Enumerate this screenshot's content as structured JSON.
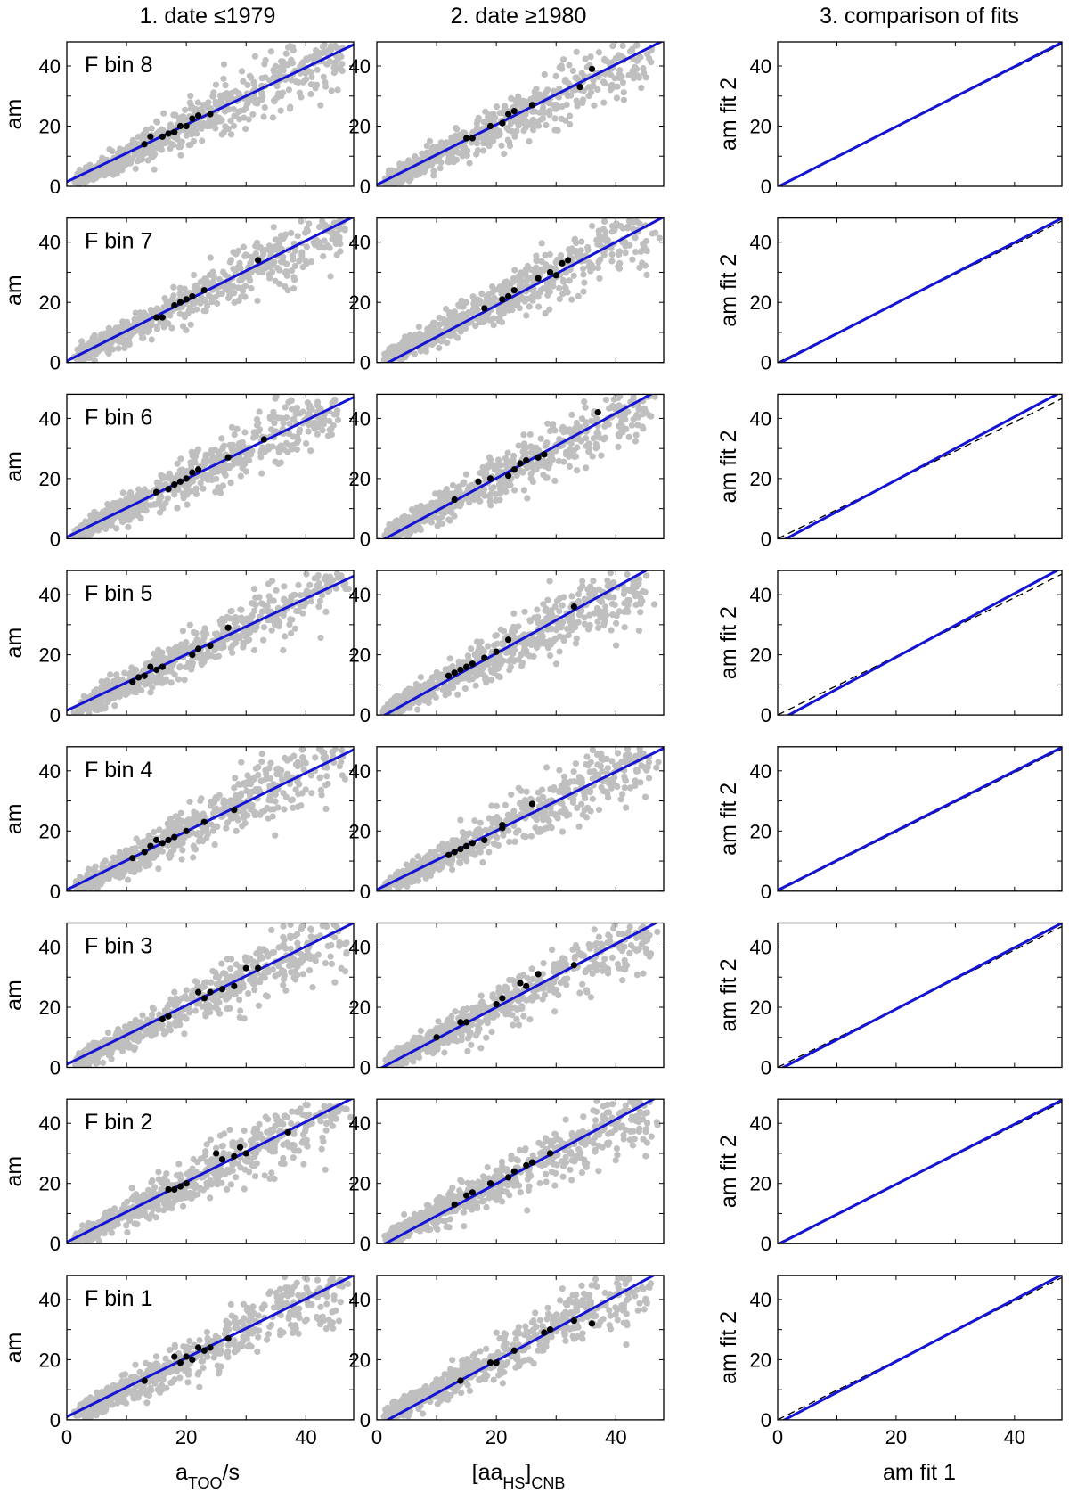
{
  "figure": {
    "col_titles": [
      "1. date ≤1979",
      "2. date ≥1980",
      "3. comparison of fits"
    ],
    "y_labels": [
      "am",
      "am",
      "am fit 2"
    ],
    "x_labels": [
      {
        "main": "a",
        "sub": "TOO",
        "rest": "/s"
      },
      {
        "pre": "[aa",
        "sub1": "HS",
        "mid": "]",
        "sub2": "CNB"
      },
      {
        "main": "am fit 1"
      }
    ],
    "tick_values": [
      0,
      20,
      40
    ]
  },
  "colors": {
    "scatter_gray": "#bfbfbf",
    "bin_mean_black": "#000000",
    "fit_blue": "#1414d2",
    "reference_dashed": "#000000"
  },
  "chart_data": [
    {
      "type": "scatter",
      "panel": "F bin 8, date ≤1979",
      "bin_label": "F bin 8",
      "xlim": [
        0,
        48
      ],
      "ylim": [
        0,
        48
      ],
      "grid": false,
      "series": [
        {
          "values": "gray scatter of 3-hourly data"
        }
      ],
      "bin_means": {
        "x": [
          13,
          14,
          16,
          17,
          18,
          19,
          20,
          21,
          22,
          24
        ],
        "y": [
          14,
          16.5,
          16.5,
          17.5,
          18,
          20,
          20,
          22.5,
          23.5,
          24
        ]
      },
      "fit_line": {
        "intercept": 1.5,
        "slope": 0.95
      }
    },
    {
      "type": "scatter",
      "panel": "F bin 8, date ≥1980",
      "xlim": [
        0,
        48
      ],
      "ylim": [
        0,
        48
      ],
      "grid": false,
      "bin_means": {
        "x": [
          15,
          16,
          19,
          21,
          22,
          23,
          26,
          34,
          36
        ],
        "y": [
          16,
          16,
          20,
          21,
          24,
          25,
          27,
          33,
          39
        ]
      },
      "fit_line": {
        "intercept": 0.5,
        "slope": 1.0
      }
    },
    {
      "type": "line",
      "panel": "F bin 8, comparison",
      "xlim": [
        0,
        48
      ],
      "ylim": [
        0,
        48
      ],
      "grid": false,
      "series": [
        {
          "name": "fit",
          "intercept": -0.2,
          "slope": 1.0
        },
        {
          "name": "y=x",
          "intercept": 0,
          "slope": 0.985
        }
      ]
    },
    {
      "type": "scatter",
      "panel": "F bin 7, date ≤1979",
      "bin_label": "F bin 7",
      "xlim": [
        0,
        48
      ],
      "ylim": [
        0,
        48
      ],
      "grid": false,
      "bin_means": {
        "x": [
          15,
          16,
          18,
          19,
          20,
          21,
          23,
          32
        ],
        "y": [
          15,
          15,
          19,
          20,
          21,
          22,
          24,
          34
        ]
      },
      "fit_line": {
        "intercept": 0.5,
        "slope": 1.0
      }
    },
    {
      "type": "scatter",
      "panel": "F bin 7, date ≥1980",
      "xlim": [
        0,
        48
      ],
      "ylim": [
        0,
        48
      ],
      "grid": false,
      "bin_means": {
        "x": [
          18,
          21,
          22,
          23,
          27,
          29,
          30,
          31,
          32
        ],
        "y": [
          18,
          21,
          22,
          24,
          28,
          30,
          29,
          33,
          34
        ]
      },
      "fit_line": {
        "intercept": -2,
        "slope": 1.05
      }
    },
    {
      "type": "line",
      "panel": "F bin 7, comparison",
      "xlim": [
        0,
        48
      ],
      "ylim": [
        0,
        48
      ],
      "grid": false,
      "series": [
        {
          "name": "fit",
          "intercept": -0.5,
          "slope": 1.01
        },
        {
          "name": "y=x",
          "intercept": 0,
          "slope": 0.98
        }
      ]
    },
    {
      "type": "scatter",
      "panel": "F bin 6, date ≤1979",
      "bin_label": "F bin 6",
      "xlim": [
        0,
        48
      ],
      "ylim": [
        0,
        48
      ],
      "grid": false,
      "bin_means": {
        "x": [
          15,
          17,
          18,
          19,
          20,
          21,
          22,
          27,
          33
        ],
        "y": [
          15.5,
          16.5,
          18,
          19,
          20,
          22,
          23,
          27,
          33
        ]
      },
      "fit_line": {
        "intercept": 0.5,
        "slope": 0.97
      }
    },
    {
      "type": "scatter",
      "panel": "F bin 6, date ≥1980",
      "xlim": [
        0,
        48
      ],
      "ylim": [
        0,
        48
      ],
      "grid": false,
      "bin_means": {
        "x": [
          13,
          17,
          19,
          22,
          23,
          24,
          25,
          27,
          28,
          37
        ],
        "y": [
          13,
          19,
          20,
          21,
          23,
          25,
          26,
          27,
          28,
          42
        ]
      },
      "fit_line": {
        "intercept": -1.5,
        "slope": 1.08
      }
    },
    {
      "type": "line",
      "panel": "F bin 6, comparison",
      "xlim": [
        0,
        48
      ],
      "ylim": [
        0,
        48
      ],
      "grid": false,
      "series": [
        {
          "name": "fit",
          "intercept": -1.5,
          "slope": 1.05
        },
        {
          "name": "y=x",
          "intercept": 0,
          "slope": 0.97
        }
      ]
    },
    {
      "type": "scatter",
      "panel": "F bin 5, date ≤1979",
      "bin_label": "F bin 5",
      "xlim": [
        0,
        48
      ],
      "ylim": [
        0,
        48
      ],
      "grid": false,
      "bin_means": {
        "x": [
          11,
          12,
          13,
          14,
          15,
          16,
          21,
          22,
          24,
          27
        ],
        "y": [
          11,
          12.5,
          13,
          16,
          15,
          16,
          20,
          22,
          23,
          29
        ]
      },
      "fit_line": {
        "intercept": 1.5,
        "slope": 0.93
      }
    },
    {
      "type": "scatter",
      "panel": "F bin 5, date ≥1980",
      "xlim": [
        0,
        48
      ],
      "ylim": [
        0,
        48
      ],
      "grid": false,
      "bin_means": {
        "x": [
          12,
          13,
          14,
          15,
          16,
          18,
          20,
          22,
          33
        ],
        "y": [
          13,
          14,
          15,
          16,
          17,
          19,
          21,
          25,
          36
        ]
      },
      "fit_line": {
        "intercept": -1.5,
        "slope": 1.1
      }
    },
    {
      "type": "line",
      "panel": "F bin 5, comparison",
      "xlim": [
        0,
        48
      ],
      "ylim": [
        0,
        48
      ],
      "grid": false,
      "series": [
        {
          "name": "fit",
          "intercept": -2,
          "slope": 1.06
        },
        {
          "name": "y=x",
          "intercept": 0,
          "slope": 0.975
        }
      ]
    },
    {
      "type": "scatter",
      "panel": "F bin 4, date ≤1979",
      "bin_label": "F bin 4",
      "xlim": [
        0,
        48
      ],
      "ylim": [
        0,
        48
      ],
      "grid": false,
      "bin_means": {
        "x": [
          11,
          13,
          14,
          15,
          16,
          17,
          18,
          20,
          23,
          28
        ],
        "y": [
          11,
          13,
          15,
          17,
          16,
          17,
          18,
          20,
          23,
          27
        ]
      },
      "fit_line": {
        "intercept": 0.5,
        "slope": 0.97
      }
    },
    {
      "type": "scatter",
      "panel": "F bin 4, date ≥1980",
      "xlim": [
        0,
        48
      ],
      "ylim": [
        0,
        48
      ],
      "grid": false,
      "bin_means": {
        "x": [
          12,
          13,
          14,
          15,
          16,
          18,
          21,
          21,
          26
        ],
        "y": [
          12,
          13,
          14,
          15,
          16,
          17,
          22,
          21,
          29
        ]
      },
      "fit_line": {
        "intercept": 0.5,
        "slope": 0.98
      }
    },
    {
      "type": "line",
      "panel": "F bin 4, comparison",
      "xlim": [
        0,
        48
      ],
      "ylim": [
        0,
        48
      ],
      "grid": false,
      "series": [
        {
          "name": "fit",
          "intercept": 0.3,
          "slope": 0.99
        },
        {
          "name": "y=x",
          "intercept": 0,
          "slope": 0.985
        }
      ]
    },
    {
      "type": "scatter",
      "panel": "F bin 3, date ≤1979",
      "bin_label": "F bin 3",
      "xlim": [
        0,
        48
      ],
      "ylim": [
        0,
        48
      ],
      "grid": false,
      "bin_means": {
        "x": [
          16,
          17,
          22,
          23,
          24,
          26,
          28,
          30,
          32
        ],
        "y": [
          16,
          17,
          25,
          23,
          25,
          26,
          27,
          33,
          33
        ]
      },
      "fit_line": {
        "intercept": 1,
        "slope": 0.98
      }
    },
    {
      "type": "scatter",
      "panel": "F bin 3, date ≥1980",
      "xlim": [
        0,
        48
      ],
      "ylim": [
        0,
        48
      ],
      "grid": false,
      "bin_means": {
        "x": [
          10,
          14,
          15,
          20,
          21,
          24,
          25,
          27,
          33
        ],
        "y": [
          10,
          15,
          15,
          21,
          23,
          28,
          27,
          31,
          34
        ]
      },
      "fit_line": {
        "intercept": -1,
        "slope": 1.05
      }
    },
    {
      "type": "line",
      "panel": "F bin 3, comparison",
      "xlim": [
        0,
        48
      ],
      "ylim": [
        0,
        48
      ],
      "grid": false,
      "series": [
        {
          "name": "fit",
          "intercept": -1,
          "slope": 1.02
        },
        {
          "name": "y=x",
          "intercept": 0,
          "slope": 0.975
        }
      ]
    },
    {
      "type": "scatter",
      "panel": "F bin 2, date ≤1979",
      "bin_label": "F bin 2",
      "xlim": [
        0,
        48
      ],
      "ylim": [
        0,
        48
      ],
      "grid": false,
      "bin_means": {
        "x": [
          17,
          18,
          19,
          20,
          25,
          26,
          28,
          29,
          30,
          37
        ],
        "y": [
          18,
          18,
          19,
          20,
          30,
          28,
          29,
          32,
          30,
          37
        ]
      },
      "fit_line": {
        "intercept": 0.5,
        "slope": 1.0
      }
    },
    {
      "type": "scatter",
      "panel": "F bin 2, date ≥1980",
      "xlim": [
        0,
        48
      ],
      "ylim": [
        0,
        48
      ],
      "grid": false,
      "bin_means": {
        "x": [
          13,
          15,
          16,
          19,
          22,
          23,
          25,
          26,
          29
        ],
        "y": [
          13,
          16,
          17,
          20,
          22,
          24,
          26,
          27,
          30
        ]
      },
      "fit_line": {
        "intercept": -1.5,
        "slope": 1.07
      }
    },
    {
      "type": "line",
      "panel": "F bin 2, comparison",
      "xlim": [
        0,
        48
      ],
      "ylim": [
        0,
        48
      ],
      "grid": false,
      "series": [
        {
          "name": "fit",
          "intercept": -0.3,
          "slope": 1.0
        },
        {
          "name": "y=x",
          "intercept": 0,
          "slope": 0.98
        }
      ]
    },
    {
      "type": "scatter",
      "panel": "F bin 1, date ≤1979",
      "bin_label": "F bin 1",
      "xlim": [
        0,
        48
      ],
      "ylim": [
        0,
        48
      ],
      "grid": false,
      "bin_means": {
        "x": [
          13,
          18,
          19,
          20,
          21,
          22,
          23,
          24,
          27
        ],
        "y": [
          13,
          21,
          19,
          21,
          20,
          24,
          23,
          24,
          27
        ]
      },
      "fit_line": {
        "intercept": 1,
        "slope": 0.98
      }
    },
    {
      "type": "scatter",
      "panel": "F bin 1, date ≥1980",
      "xlim": [
        0,
        48
      ],
      "ylim": [
        0,
        48
      ],
      "grid": false,
      "bin_means": {
        "x": [
          14,
          19,
          20,
          23,
          28,
          29,
          33,
          36
        ],
        "y": [
          13,
          19,
          19,
          23,
          29,
          30,
          33,
          32
        ]
      },
      "fit_line": {
        "intercept": -2,
        "slope": 1.08
      }
    },
    {
      "type": "line",
      "panel": "F bin 1, comparison",
      "xlim": [
        0,
        48
      ],
      "ylim": [
        0,
        48
      ],
      "grid": false,
      "series": [
        {
          "name": "fit",
          "intercept": -1.2,
          "slope": 1.03
        },
        {
          "name": "y=x",
          "intercept": 0,
          "slope": 0.985
        }
      ]
    }
  ]
}
